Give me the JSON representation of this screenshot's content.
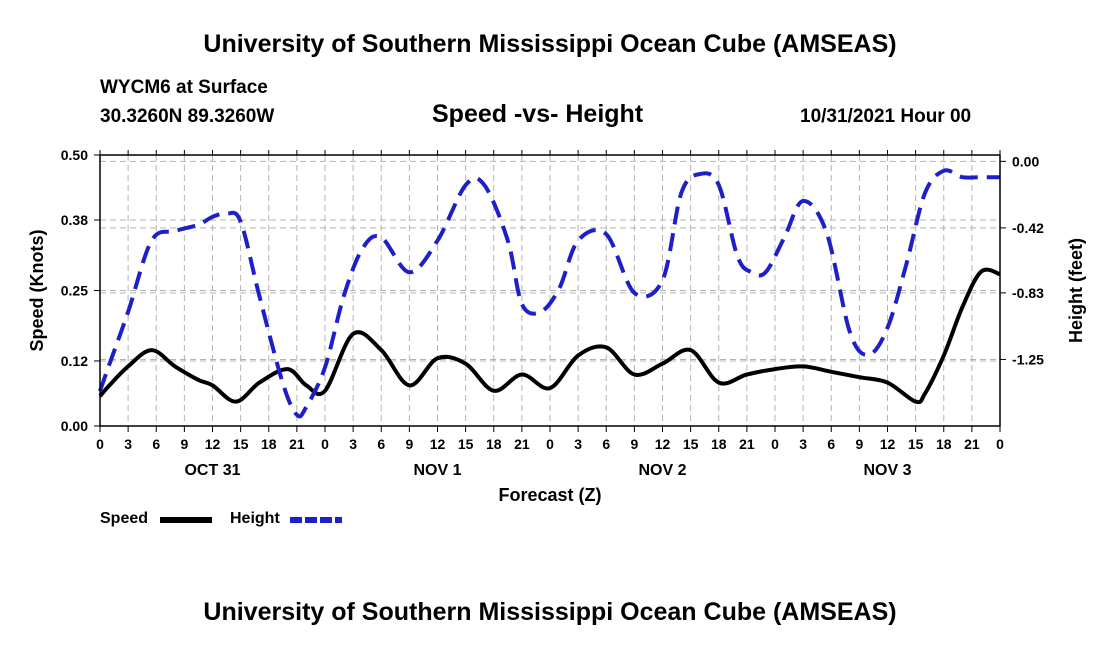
{
  "header": {
    "title": "University of Southern Mississippi Ocean Cube (AMSEAS)",
    "station": "WYCM6 at Surface",
    "coords": "30.3260N  89.3260W",
    "subtitle": "Speed -vs- Height",
    "datetime": "10/31/2021 Hour 00"
  },
  "footer": {
    "title": "University of Southern Mississippi Ocean Cube (AMSEAS)"
  },
  "legend": {
    "speed": "Speed",
    "height": "Height"
  },
  "colors": {
    "speed": "#000000",
    "height": "#1f1fc8",
    "grid": "#b4b4b4"
  },
  "chart_data": {
    "type": "line",
    "title": "Speed -vs- Height",
    "xlabel": "Forecast (Z)",
    "ylabel": "Speed (Knots)",
    "y2label": "Height (feet)",
    "x_range": [
      0,
      96
    ],
    "ylim": [
      0,
      0.5
    ],
    "y_ticks": [
      0.0,
      0.12,
      0.25,
      0.38,
      0.5
    ],
    "y_tick_labels": [
      "0.00",
      "0.12",
      "0.25",
      "0.38",
      "0.50"
    ],
    "y2lim": [
      -1.67,
      0.04
    ],
    "y2_ticks": [
      0.0,
      -0.42,
      -0.83,
      -1.25
    ],
    "y2_tick_labels": [
      "0.00",
      "-0.42",
      "-0.83",
      "-1.25"
    ],
    "x_ticks": [
      0,
      3,
      6,
      9,
      12,
      15,
      18,
      21,
      24,
      27,
      30,
      33,
      36,
      39,
      42,
      45,
      48,
      51,
      54,
      57,
      60,
      63,
      66,
      69,
      72,
      75,
      78,
      81,
      84,
      87,
      90,
      93,
      96
    ],
    "x_tick_labels": [
      "0",
      "3",
      "6",
      "9",
      "12",
      "15",
      "18",
      "21",
      "0",
      "3",
      "6",
      "9",
      "12",
      "15",
      "18",
      "21",
      "0",
      "3",
      "6",
      "9",
      "12",
      "15",
      "18",
      "21",
      "0",
      "3",
      "6",
      "9",
      "12",
      "15",
      "18",
      "21",
      "0"
    ],
    "day_labels": [
      {
        "x": 12,
        "label": "OCT 31"
      },
      {
        "x": 36,
        "label": "NOV 1"
      },
      {
        "x": 60,
        "label": "NOV 2"
      },
      {
        "x": 84,
        "label": "NOV 3"
      }
    ],
    "series": [
      {
        "name": "Speed",
        "axis": "left",
        "style": "solid",
        "x": [
          0,
          1,
          3,
          5.5,
          8,
          10.5,
          12,
          14.5,
          17,
          20,
          22,
          24,
          27,
          30,
          33,
          36,
          39,
          42,
          45,
          48,
          51,
          54,
          57,
          60,
          63,
          66,
          69,
          72,
          75,
          78,
          81,
          84,
          87,
          88,
          90,
          92,
          94,
          96
        ],
        "values": [
          0.055,
          0.075,
          0.11,
          0.14,
          0.11,
          0.085,
          0.075,
          0.045,
          0.08,
          0.105,
          0.075,
          0.065,
          0.17,
          0.14,
          0.075,
          0.125,
          0.115,
          0.065,
          0.095,
          0.07,
          0.13,
          0.145,
          0.095,
          0.115,
          0.14,
          0.08,
          0.095,
          0.105,
          0.11,
          0.1,
          0.09,
          0.08,
          0.045,
          0.06,
          0.13,
          0.22,
          0.285,
          0.28
        ]
      },
      {
        "name": "Height",
        "axis": "right",
        "style": "dashed",
        "x": [
          0,
          1,
          3,
          5.5,
          8,
          10.5,
          12,
          13.5,
          15,
          17,
          19.5,
          21,
          22,
          24,
          26,
          28,
          30,
          33,
          36,
          39,
          41,
          43.5,
          45,
          47,
          49,
          51,
          54,
          57,
          60,
          62,
          64,
          66,
          68,
          69.5,
          71,
          73,
          75,
          77.5,
          80,
          82,
          84,
          86,
          88,
          90,
          92,
          94,
          96
        ],
        "values": [
          -1.45,
          -1.28,
          -0.95,
          -0.5,
          -0.44,
          -0.4,
          -0.35,
          -0.33,
          -0.38,
          -0.85,
          -1.4,
          -1.6,
          -1.55,
          -1.3,
          -0.85,
          -0.55,
          -0.48,
          -0.7,
          -0.5,
          -0.15,
          -0.15,
          -0.5,
          -0.9,
          -0.95,
          -0.8,
          -0.5,
          -0.46,
          -0.83,
          -0.75,
          -0.2,
          -0.08,
          -0.15,
          -0.6,
          -0.7,
          -0.7,
          -0.48,
          -0.25,
          -0.45,
          -1.08,
          -1.22,
          -1.05,
          -0.65,
          -0.2,
          -0.06,
          -0.1,
          -0.1,
          -0.1
        ]
      }
    ]
  }
}
